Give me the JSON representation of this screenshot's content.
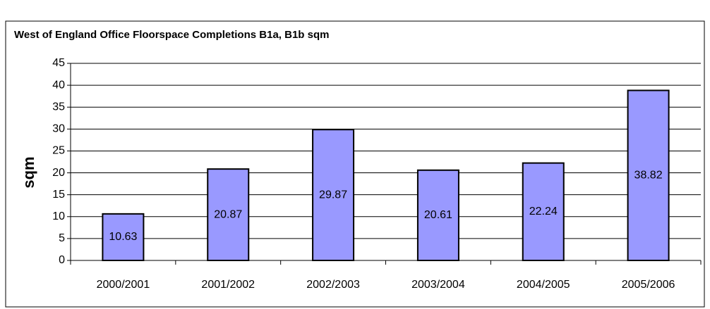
{
  "chart_data": {
    "type": "bar",
    "title": "West of England Office Floorspace Completions B1a, B1b sqm",
    "y_label": "sqm",
    "categories": [
      "2000/2001",
      "2001/2002",
      "2002/2003",
      "2003/2004",
      "2004/2005",
      "2005/2006"
    ],
    "values": [
      10.63,
      20.87,
      29.87,
      20.61,
      22.24,
      38.82
    ],
    "color": "#9999ff",
    "ylim": [
      0,
      45
    ],
    "yticks": [
      0,
      5,
      10,
      15,
      20,
      25,
      30,
      35,
      40,
      45
    ],
    "grid": true
  }
}
